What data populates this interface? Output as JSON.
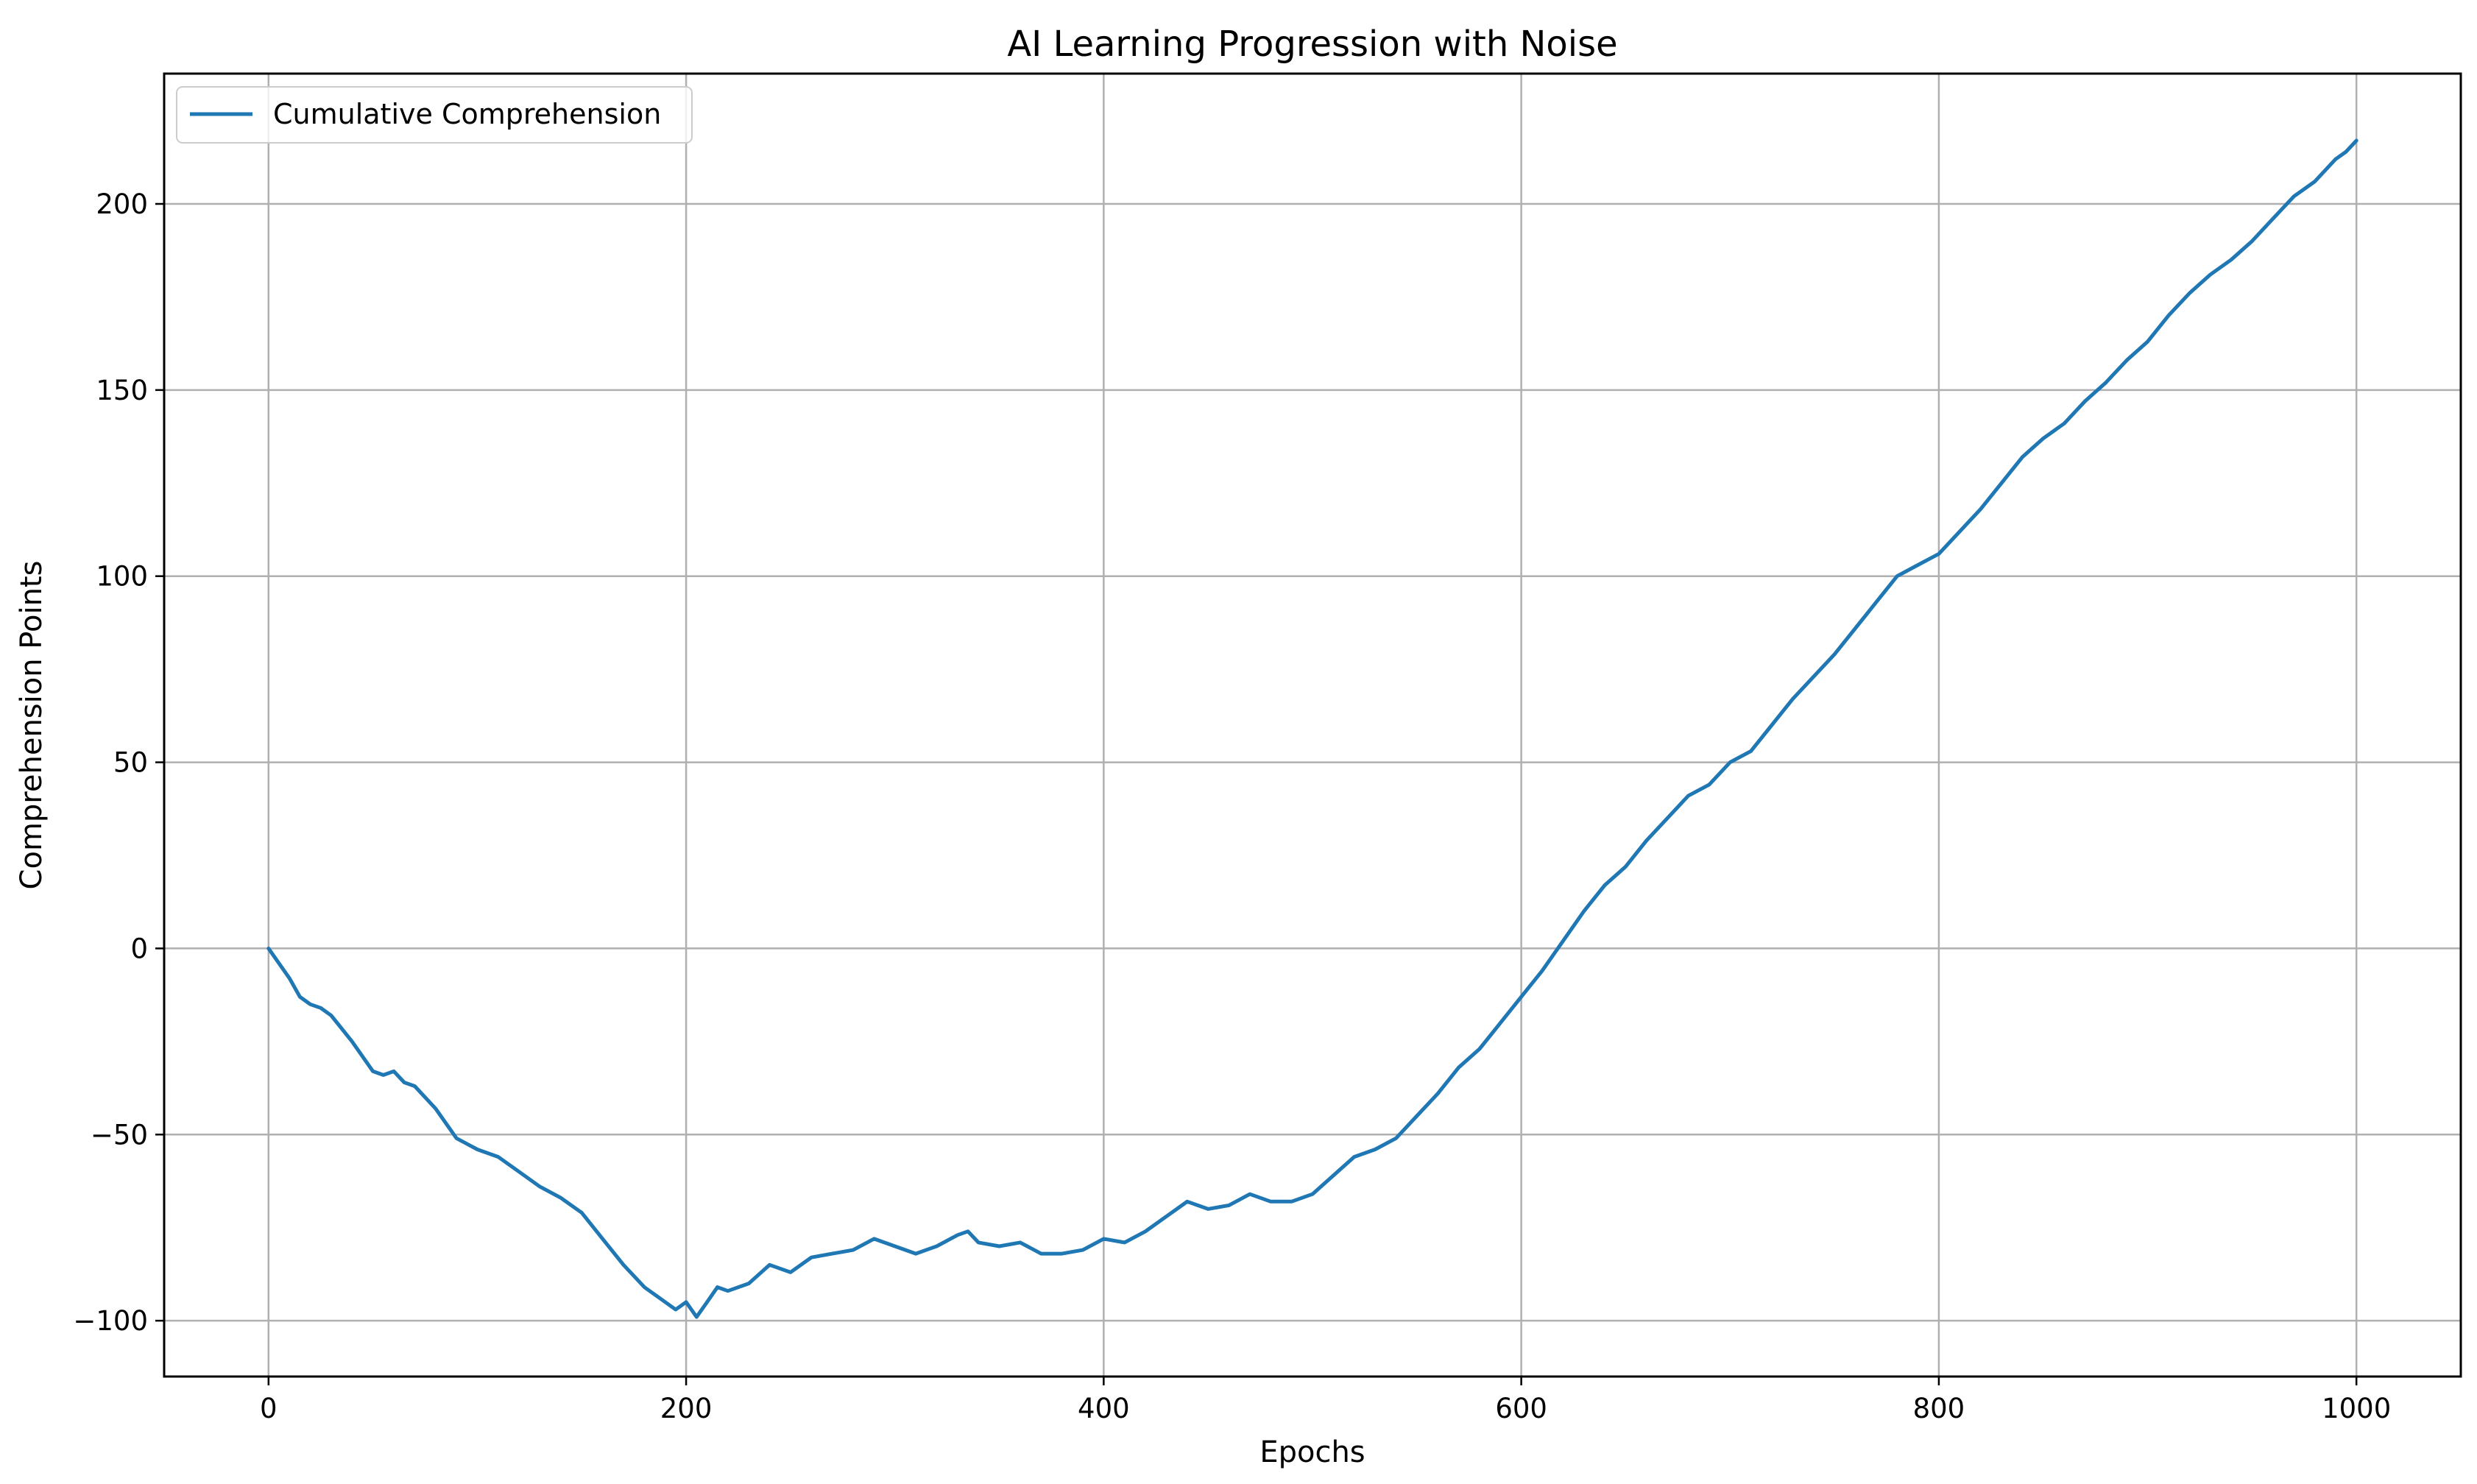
{
  "chart_data": {
    "type": "line",
    "title": "AI Learning Progression with Noise",
    "xlabel": "Epochs",
    "ylabel": "Comprehension Points",
    "xlim": [
      -50,
      1050
    ],
    "ylim": [
      -115,
      235
    ],
    "xticks": [
      0,
      200,
      400,
      600,
      800,
      1000
    ],
    "yticks": [
      -100,
      -50,
      0,
      50,
      100,
      150,
      200
    ],
    "xtick_labels": [
      "0",
      "200",
      "400",
      "600",
      "800",
      "1000"
    ],
    "ytick_labels": [
      "−100",
      "−50",
      "0",
      "50",
      "100",
      "150",
      "200"
    ],
    "grid": true,
    "legend_position": "upper left",
    "colors": {
      "series": "#1f77b4",
      "grid": "#b0b0b0",
      "axes": "#000000"
    },
    "series": [
      {
        "name": "Cumulative Comprehension",
        "x": [
          0,
          5,
          10,
          15,
          20,
          25,
          30,
          40,
          50,
          55,
          60,
          65,
          70,
          80,
          90,
          100,
          110,
          120,
          130,
          140,
          150,
          160,
          170,
          180,
          190,
          195,
          200,
          205,
          210,
          215,
          220,
          230,
          240,
          250,
          260,
          270,
          280,
          290,
          300,
          310,
          320,
          330,
          335,
          340,
          350,
          360,
          370,
          380,
          390,
          400,
          410,
          420,
          430,
          440,
          450,
          460,
          470,
          480,
          490,
          500,
          510,
          520,
          530,
          540,
          550,
          560,
          570,
          580,
          590,
          600,
          610,
          620,
          630,
          640,
          650,
          660,
          670,
          680,
          690,
          700,
          710,
          720,
          730,
          740,
          750,
          760,
          770,
          780,
          790,
          800,
          810,
          820,
          830,
          840,
          850,
          860,
          870,
          880,
          890,
          900,
          910,
          920,
          930,
          940,
          950,
          960,
          970,
          980,
          990,
          995,
          1000
        ],
        "y": [
          0,
          -4,
          -8,
          -13,
          -15,
          -16,
          -18,
          -25,
          -33,
          -34,
          -33,
          -36,
          -37,
          -43,
          -51,
          -54,
          -56,
          -60,
          -64,
          -67,
          -71,
          -78,
          -85,
          -91,
          -95,
          -97,
          -95,
          -99,
          -95,
          -91,
          -92,
          -90,
          -85,
          -87,
          -83,
          -82,
          -81,
          -78,
          -80,
          -82,
          -80,
          -77,
          -76,
          -79,
          -80,
          -79,
          -82,
          -82,
          -81,
          -78,
          -79,
          -76,
          -72,
          -68,
          -70,
          -69,
          -66,
          -68,
          -68,
          -66,
          -61,
          -56,
          -54,
          -51,
          -45,
          -39,
          -32,
          -27,
          -20,
          -13,
          -6,
          2,
          10,
          17,
          22,
          29,
          35,
          41,
          44,
          50,
          53,
          60,
          67,
          73,
          79,
          86,
          93,
          100,
          103,
          106,
          112,
          118,
          125,
          132,
          137,
          141,
          147,
          152,
          158,
          163,
          170,
          176,
          181,
          185,
          190,
          196,
          202,
          206,
          212,
          214,
          217
        ]
      }
    ]
  }
}
